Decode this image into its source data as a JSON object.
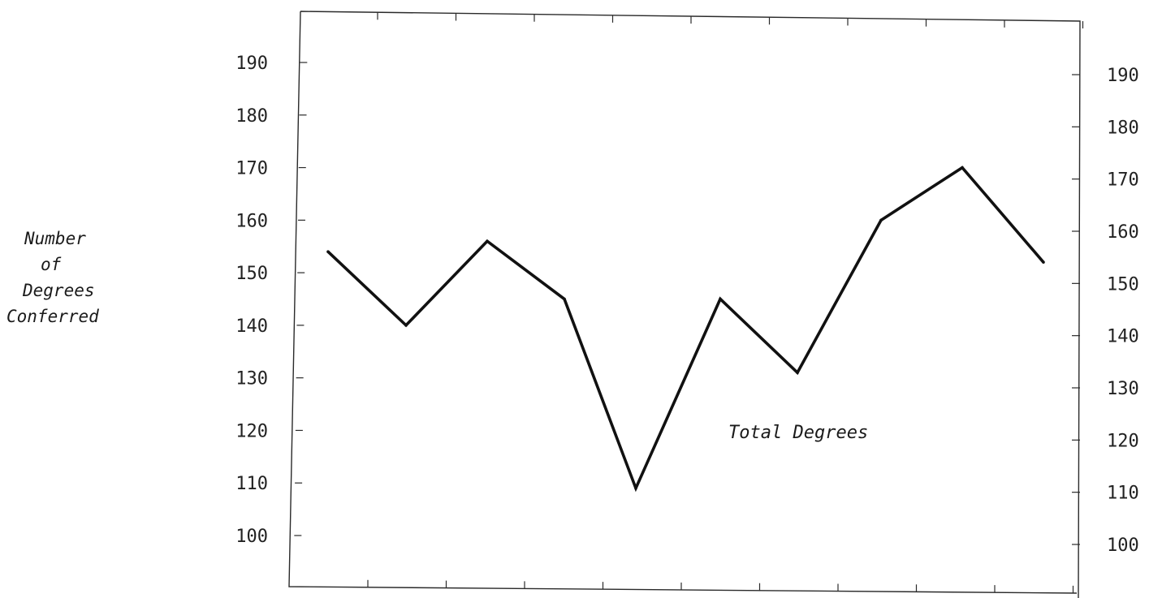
{
  "chart_data": {
    "type": "line",
    "title": "",
    "xlabel": "",
    "ylabel": "Number of Degrees Conferred",
    "ylabel_lines": [
      "Number",
      "of",
      "Degrees",
      "Conferred"
    ],
    "left_ticks": [
      "190",
      "180",
      "170",
      "160",
      "150",
      "140",
      "130",
      "120",
      "110",
      "100"
    ],
    "right_ticks": [
      "190",
      "180",
      "170",
      "160",
      "150",
      "140",
      "130",
      "120",
      "110",
      "100"
    ],
    "ylim": [
      88,
      200
    ],
    "series": [
      {
        "values": [
          154,
          140,
          156,
          145,
          109,
          145,
          131,
          160,
          170,
          152
        ]
      }
    ],
    "annotation": "Total Degrees",
    "grid": false,
    "colors": {
      "line": "#111111",
      "frame": "#2a2a2a"
    }
  }
}
